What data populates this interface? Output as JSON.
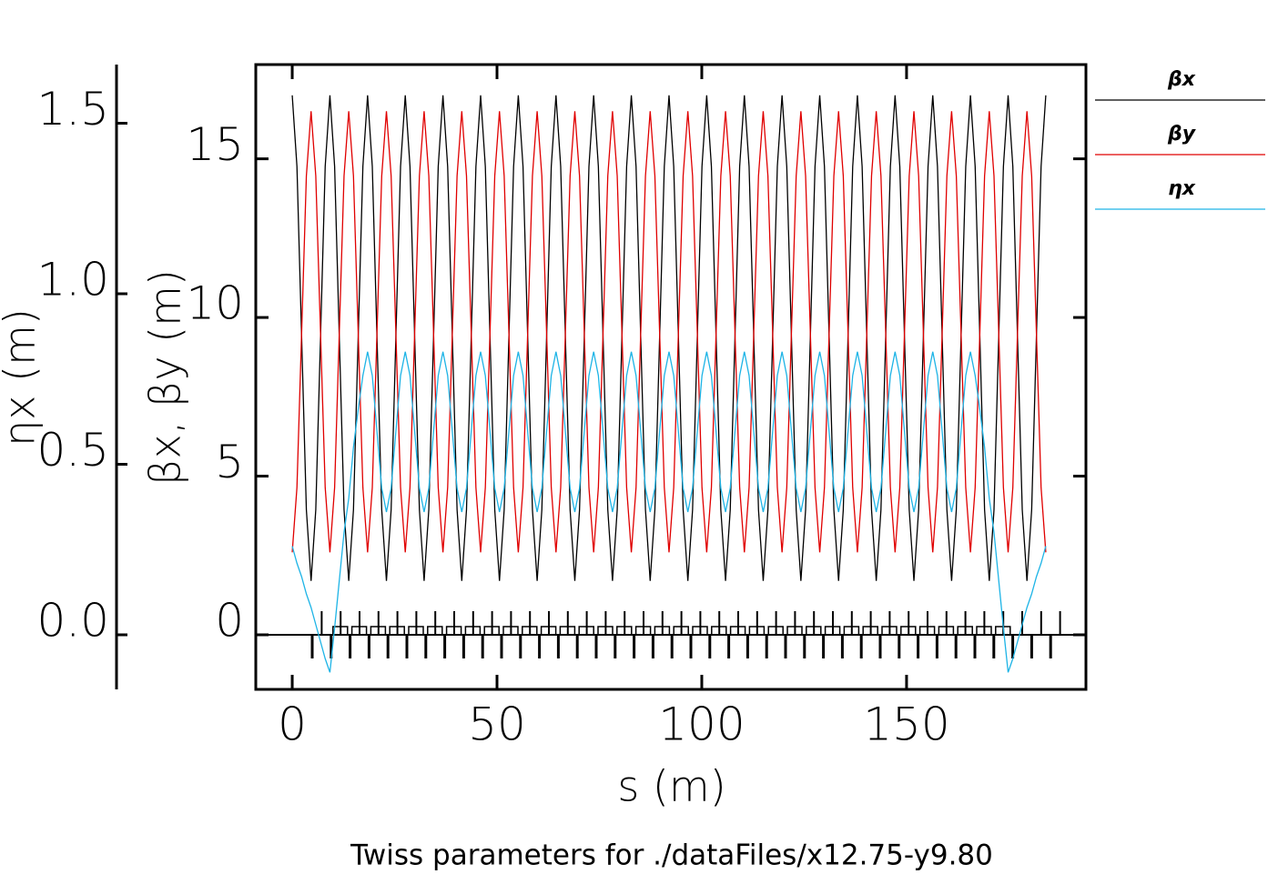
{
  "chart_data": {
    "type": "line",
    "title": "Twiss parameters for ./dataFiles/x12.75-y9.80",
    "xlabel": "s (m)",
    "ylabel": "βx, βy (m)",
    "y2label": "ηx (m)",
    "legend": "right",
    "xlim": [
      -8.9,
      193.8
    ],
    "ylim": [
      -1.72,
      17.97
    ],
    "y2lim": [
      -0.16,
      1.672
    ],
    "xticks": [
      0,
      50,
      100,
      150
    ],
    "yticks": [
      0,
      5,
      10,
      15
    ],
    "y2ticks": [
      {
        "value": 0,
        "label": "0.0"
      },
      {
        "value": 0.5,
        "label": "0.5"
      },
      {
        "value": 1,
        "label": "1.0"
      },
      {
        "value": 1.5,
        "label": "1.5"
      }
    ],
    "x": [
      0,
      1.15,
      2.3,
      3.45,
      4.6,
      5.75,
      6.9,
      8.05,
      9.2,
      10.35,
      11.5,
      12.65,
      13.8,
      14.95,
      16.1,
      17.25,
      18.4,
      19.55,
      20.7,
      21.85,
      23,
      24.15,
      25.3,
      26.45,
      27.6,
      28.75,
      29.9,
      31.05,
      32.2,
      33.35,
      34.5,
      35.65,
      36.8,
      37.95,
      39.1,
      40.25,
      41.4,
      42.55,
      43.7,
      44.85,
      46,
      47.15,
      48.3,
      49.45,
      50.6,
      51.75,
      52.9,
      54.05,
      55.2,
      56.35,
      57.5,
      58.65,
      59.8,
      60.95,
      62.1,
      63.25,
      64.4,
      65.55,
      66.7,
      67.85,
      69,
      70.15,
      71.3,
      72.45,
      73.6,
      74.75,
      75.9,
      77.05,
      78.2,
      79.35,
      80.5,
      81.65,
      82.8,
      83.95,
      85.1,
      86.25,
      87.4,
      88.55,
      89.7,
      90.85,
      92,
      93.15,
      94.3,
      95.45,
      96.6,
      97.75,
      98.9,
      100.05,
      101.2,
      102.35,
      103.5,
      104.65,
      105.8,
      106.95,
      108.1,
      109.25,
      110.4,
      111.55,
      112.7,
      113.85,
      115,
      116.15,
      117.3,
      118.45,
      119.6,
      120.75,
      121.9,
      123.05,
      124.2,
      125.35,
      126.5,
      127.65,
      128.8,
      129.95,
      131.1,
      132.25,
      133.4,
      134.55,
      135.7,
      136.85,
      138,
      139.15,
      140.3,
      141.45,
      142.6,
      143.75,
      144.9,
      146.05,
      147.2,
      148.35,
      149.5,
      150.65,
      151.8,
      152.95,
      154.1,
      155.25,
      156.4,
      157.55,
      158.7,
      159.85,
      161,
      162.15,
      163.3,
      164.45,
      165.6,
      166.75,
      167.9,
      169.05,
      170.2,
      171.35,
      172.5,
      173.65,
      174.8,
      175.95,
      177.1,
      178.25,
      179.4,
      180.55,
      181.7,
      182.85,
      184
    ],
    "series": [
      {
        "name": "βx",
        "color": "#000000",
        "values": [
          17,
          14.76,
          9.35,
          3.94,
          1.7,
          3.94,
          9.35,
          14.76,
          17,
          14.76,
          9.35,
          3.94,
          1.7,
          3.94,
          9.35,
          14.76,
          17,
          14.76,
          9.35,
          3.94,
          1.7,
          3.94,
          9.35,
          14.76,
          17,
          14.76,
          9.35,
          3.94,
          1.7,
          3.94,
          9.35,
          14.76,
          17,
          14.76,
          9.35,
          3.94,
          1.7,
          3.94,
          9.35,
          14.76,
          17,
          14.76,
          9.35,
          3.94,
          1.7,
          3.94,
          9.35,
          14.76,
          17,
          14.76,
          9.35,
          3.94,
          1.7,
          3.94,
          9.35,
          14.76,
          17,
          14.76,
          9.35,
          3.94,
          1.7,
          3.94,
          9.35,
          14.76,
          17,
          14.76,
          9.35,
          3.94,
          1.7,
          3.94,
          9.35,
          14.76,
          17,
          14.76,
          9.35,
          3.94,
          1.7,
          3.94,
          9.35,
          14.76,
          17,
          14.76,
          9.35,
          3.94,
          1.7,
          3.94,
          9.35,
          14.76,
          17,
          14.76,
          9.35,
          3.94,
          1.7,
          3.94,
          9.35,
          14.76,
          17,
          14.76,
          9.35,
          3.94,
          1.7,
          3.94,
          9.35,
          14.76,
          17,
          14.76,
          9.35,
          3.94,
          1.7,
          3.94,
          9.35,
          14.76,
          17,
          14.76,
          9.35,
          3.94,
          1.7,
          3.94,
          9.35,
          14.76,
          17,
          14.76,
          9.35,
          3.94,
          1.7,
          3.94,
          9.35,
          14.76,
          17,
          14.76,
          9.35,
          3.94,
          1.7,
          3.94,
          9.35,
          14.76,
          17,
          14.76,
          9.35,
          3.94,
          1.7,
          3.94,
          9.35,
          14.76,
          17,
          14.76,
          9.35,
          3.94,
          1.7,
          3.94,
          9.35,
          14.76,
          17,
          14.76,
          9.35,
          3.94,
          1.7,
          3.94,
          9.35,
          14.76,
          17
        ]
      },
      {
        "name": "βy",
        "color": "#e00000",
        "values": [
          2.6,
          4.64,
          9.55,
          14.46,
          16.5,
          14.46,
          9.55,
          4.64,
          2.6,
          4.64,
          9.55,
          14.46,
          16.5,
          14.46,
          9.55,
          4.64,
          2.6,
          4.64,
          9.55,
          14.46,
          16.5,
          14.46,
          9.55,
          4.64,
          2.6,
          4.64,
          9.55,
          14.46,
          16.5,
          14.46,
          9.55,
          4.64,
          2.6,
          4.64,
          9.55,
          14.46,
          16.5,
          14.46,
          9.55,
          4.64,
          2.6,
          4.64,
          9.55,
          14.46,
          16.5,
          14.46,
          9.55,
          4.64,
          2.6,
          4.64,
          9.55,
          14.46,
          16.5,
          14.46,
          9.55,
          4.64,
          2.6,
          4.64,
          9.55,
          14.46,
          16.5,
          14.46,
          9.55,
          4.64,
          2.6,
          4.64,
          9.55,
          14.46,
          16.5,
          14.46,
          9.55,
          4.64,
          2.6,
          4.64,
          9.55,
          14.46,
          16.5,
          14.46,
          9.55,
          4.64,
          2.6,
          4.64,
          9.55,
          14.46,
          16.5,
          14.46,
          9.55,
          4.64,
          2.6,
          4.64,
          9.55,
          14.46,
          16.5,
          14.46,
          9.55,
          4.64,
          2.6,
          4.64,
          9.55,
          14.46,
          16.5,
          14.46,
          9.55,
          4.64,
          2.6,
          4.64,
          9.55,
          14.46,
          16.5,
          14.46,
          9.55,
          4.64,
          2.6,
          4.64,
          9.55,
          14.46,
          16.5,
          14.46,
          9.55,
          4.64,
          2.6,
          4.64,
          9.55,
          14.46,
          16.5,
          14.46,
          9.55,
          4.64,
          2.6,
          4.64,
          9.55,
          14.46,
          16.5,
          14.46,
          9.55,
          4.64,
          2.6,
          4.64,
          9.55,
          14.46,
          16.5,
          14.46,
          9.55,
          4.64,
          2.6,
          4.64,
          9.55,
          14.46,
          16.5,
          14.46,
          9.55,
          4.64,
          2.6,
          4.64,
          9.55,
          14.46,
          16.5,
          14.46,
          9.55,
          4.64,
          2.6
        ]
      },
      {
        "name": "ηx",
        "color": "#1eb4e6",
        "axis": "y2",
        "values": [
          0.26,
          0.21,
          0.17,
          0.12,
          0.08,
          0.03,
          -0.02,
          -0.07,
          -0.11,
          0.02,
          0.16,
          0.3,
          0.4,
          0.55,
          0.66,
          0.76,
          0.83,
          0.76,
          0.595,
          0.43,
          0.36,
          0.43,
          0.595,
          0.76,
          0.83,
          0.76,
          0.595,
          0.43,
          0.36,
          0.43,
          0.595,
          0.76,
          0.83,
          0.76,
          0.595,
          0.43,
          0.36,
          0.43,
          0.595,
          0.76,
          0.83,
          0.76,
          0.595,
          0.43,
          0.36,
          0.43,
          0.595,
          0.76,
          0.83,
          0.76,
          0.595,
          0.43,
          0.36,
          0.43,
          0.595,
          0.76,
          0.83,
          0.76,
          0.595,
          0.43,
          0.36,
          0.43,
          0.595,
          0.76,
          0.83,
          0.76,
          0.595,
          0.43,
          0.36,
          0.43,
          0.595,
          0.76,
          0.83,
          0.76,
          0.595,
          0.43,
          0.36,
          0.43,
          0.595,
          0.76,
          0.83,
          0.76,
          0.595,
          0.43,
          0.36,
          0.43,
          0.595,
          0.76,
          0.83,
          0.76,
          0.595,
          0.43,
          0.36,
          0.43,
          0.595,
          0.76,
          0.83,
          0.76,
          0.595,
          0.43,
          0.36,
          0.43,
          0.595,
          0.76,
          0.83,
          0.76,
          0.595,
          0.43,
          0.36,
          0.43,
          0.595,
          0.76,
          0.83,
          0.76,
          0.595,
          0.43,
          0.36,
          0.43,
          0.595,
          0.76,
          0.83,
          0.76,
          0.595,
          0.43,
          0.36,
          0.43,
          0.595,
          0.76,
          0.83,
          0.76,
          0.595,
          0.43,
          0.36,
          0.43,
          0.595,
          0.76,
          0.83,
          0.76,
          0.595,
          0.43,
          0.36,
          0.43,
          0.595,
          0.76,
          0.83,
          0.76,
          0.66,
          0.55,
          0.4,
          0.3,
          0.16,
          0.02,
          -0.11,
          -0.07,
          -0.02,
          0.03,
          0.08,
          0.12,
          0.17,
          0.21,
          0.26
        ]
      }
    ]
  }
}
